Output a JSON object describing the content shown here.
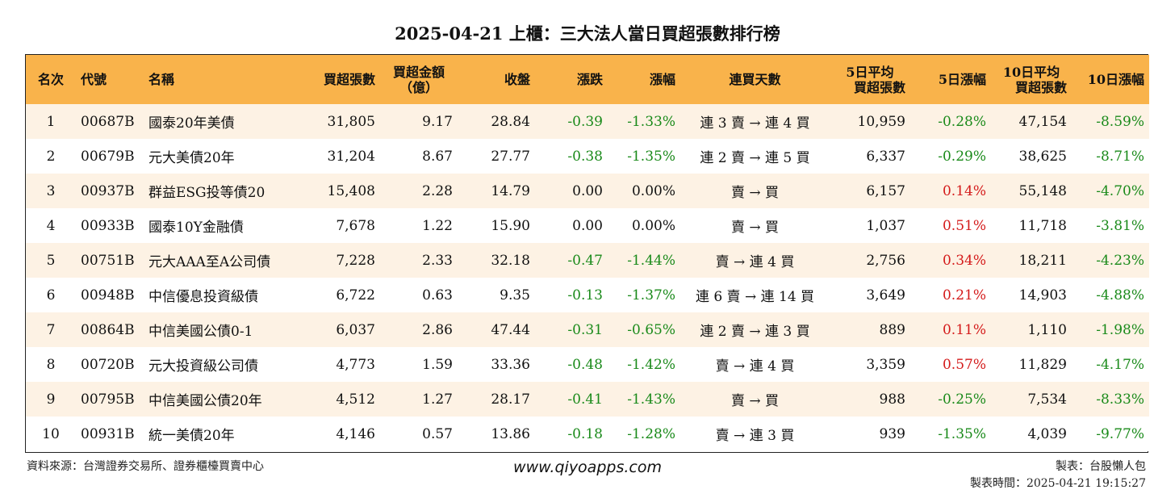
{
  "title": "2025-04-21 上櫃：三大法人當日買超張數排行榜",
  "headers": {
    "rank": "名次",
    "code": "代號",
    "name": "名稱",
    "buy_lots": "買超張數",
    "buy_amount_1": "買超金額",
    "buy_amount_2": "（億）",
    "close": "收盤",
    "change": "漲跌",
    "change_pct": "漲幅",
    "streak": "連買天數",
    "avg5_1": "5日平均",
    "avg5_2": "買超張數",
    "pct5": "5日漲幅",
    "avg10_1": "10日平均",
    "avg10_2": "買超張數",
    "pct10": "10日漲幅"
  },
  "rows": [
    {
      "rank": "1",
      "code": "00687B",
      "name": "國泰20年美債",
      "buy_lots": "31,805",
      "buy_amount": "9.17",
      "close": "28.84",
      "change": "-0.39",
      "change_pct": "-1.33%",
      "streak": "連 3 賣 → 連 4 買",
      "avg5": "10,959",
      "pct5": "-0.28%",
      "avg10": "47,154",
      "pct10": "-8.59%"
    },
    {
      "rank": "2",
      "code": "00679B",
      "name": "元大美債20年",
      "buy_lots": "31,204",
      "buy_amount": "8.67",
      "close": "27.77",
      "change": "-0.38",
      "change_pct": "-1.35%",
      "streak": "連 2 賣 → 連 5 買",
      "avg5": "6,337",
      "pct5": "-0.29%",
      "avg10": "38,625",
      "pct10": "-8.71%"
    },
    {
      "rank": "3",
      "code": "00937B",
      "name": "群益ESG投等債20",
      "buy_lots": "15,408",
      "buy_amount": "2.28",
      "close": "14.79",
      "change": "0.00",
      "change_pct": "0.00%",
      "streak": "賣 → 買",
      "avg5": "6,157",
      "pct5": "0.14%",
      "avg10": "55,148",
      "pct10": "-4.70%"
    },
    {
      "rank": "4",
      "code": "00933B",
      "name": "國泰10Y金融債",
      "buy_lots": "7,678",
      "buy_amount": "1.22",
      "close": "15.90",
      "change": "0.00",
      "change_pct": "0.00%",
      "streak": "賣 → 買",
      "avg5": "1,037",
      "pct5": "0.51%",
      "avg10": "11,718",
      "pct10": "-3.81%"
    },
    {
      "rank": "5",
      "code": "00751B",
      "name": "元大AAA至A公司債",
      "buy_lots": "7,228",
      "buy_amount": "2.33",
      "close": "32.18",
      "change": "-0.47",
      "change_pct": "-1.44%",
      "streak": "賣 → 連 4 買",
      "avg5": "2,756",
      "pct5": "0.34%",
      "avg10": "18,211",
      "pct10": "-4.23%"
    },
    {
      "rank": "6",
      "code": "00948B",
      "name": "中信優息投資級債",
      "buy_lots": "6,722",
      "buy_amount": "0.63",
      "close": "9.35",
      "change": "-0.13",
      "change_pct": "-1.37%",
      "streak": "連 6 賣 → 連 14 買",
      "avg5": "3,649",
      "pct5": "0.21%",
      "avg10": "14,903",
      "pct10": "-4.88%"
    },
    {
      "rank": "7",
      "code": "00864B",
      "name": "中信美國公債0-1",
      "buy_lots": "6,037",
      "buy_amount": "2.86",
      "close": "47.44",
      "change": "-0.31",
      "change_pct": "-0.65%",
      "streak": "連 2 賣 → 連 3 買",
      "avg5": "889",
      "pct5": "0.11%",
      "avg10": "1,110",
      "pct10": "-1.98%"
    },
    {
      "rank": "8",
      "code": "00720B",
      "name": "元大投資級公司債",
      "buy_lots": "4,773",
      "buy_amount": "1.59",
      "close": "33.36",
      "change": "-0.48",
      "change_pct": "-1.42%",
      "streak": "賣 → 連 4 買",
      "avg5": "3,359",
      "pct5": "0.57%",
      "avg10": "11,829",
      "pct10": "-4.17%"
    },
    {
      "rank": "9",
      "code": "00795B",
      "name": "中信美國公債20年",
      "buy_lots": "4,512",
      "buy_amount": "1.27",
      "close": "28.17",
      "change": "-0.41",
      "change_pct": "-1.43%",
      "streak": "賣 → 買",
      "avg5": "988",
      "pct5": "-0.25%",
      "avg10": "7,534",
      "pct10": "-8.33%"
    },
    {
      "rank": "10",
      "code": "00931B",
      "name": "統一美債20年",
      "buy_lots": "4,146",
      "buy_amount": "0.57",
      "close": "13.86",
      "change": "-0.18",
      "change_pct": "-1.28%",
      "streak": "賣 → 連 3 買",
      "avg5": "939",
      "pct5": "-1.35%",
      "avg10": "4,039",
      "pct10": "-9.77%"
    }
  ],
  "footer": {
    "source": "資料來源：台灣證券交易所、證券櫃檯買賣中心",
    "website": "www.qiyoapps.com",
    "author": "製表：台股懶人包",
    "made_time": "製表時間：2025-04-21 19:15:27"
  },
  "colors": {
    "header_bg": "#f9b34b",
    "row_odd_bg": "#fdf2e4",
    "negative": "#1a8a1a",
    "positive": "#d41a1a"
  }
}
